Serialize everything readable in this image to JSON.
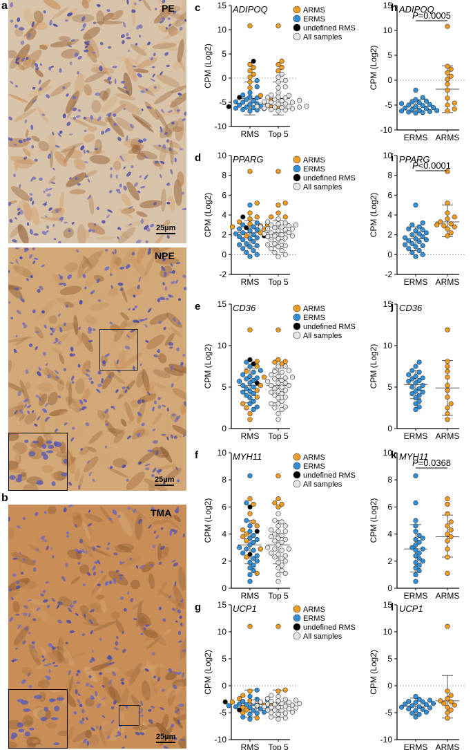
{
  "panels": {
    "a": "a",
    "b": "b",
    "c": "c",
    "d": "d",
    "e": "e",
    "f": "f",
    "g": "g",
    "h": "h",
    "i": "i",
    "j": "j",
    "k": "k",
    "l": "l"
  },
  "micrographs": [
    {
      "tag": "PE",
      "scale": "25µm",
      "tint": "#d9c3a8"
    },
    {
      "tag": "NPE",
      "scale": "25µm",
      "tint": "#d2a878"
    },
    {
      "tag": "TMA",
      "scale": "25µm",
      "tint": "#c98e58"
    }
  ],
  "colors": {
    "arms": "#f39c1e",
    "erms": "#2f8fd8",
    "undefined": "#000000",
    "all": "#e8e8e8"
  },
  "legend": [
    "ARMS",
    "ERMS",
    "undefined RMS",
    "All samples"
  ],
  "chart_data": [
    {
      "id": "c",
      "type": "scatter",
      "gene": "ADIPOQ",
      "ylabel": "CPM (Log2)",
      "ylim": [
        -10,
        15
      ],
      "yticks": [
        -10,
        -5,
        0,
        5,
        10,
        15
      ],
      "categories": [
        "RMS",
        "Top 5"
      ],
      "mean": -4.2,
      "sd_low": -7.6,
      "sd_high": -0.8,
      "arms": [
        10.8,
        2.8,
        2.2,
        1.5,
        0.8,
        0.2,
        -0.8,
        -2.0,
        -3.6,
        -4.6,
        -5.0,
        -5.8,
        -6.0
      ],
      "erms": [
        -0.5,
        -1.8,
        -3.0,
        -3.5,
        -3.9,
        -4.1,
        -4.4,
        -4.7,
        -5.0,
        -5.3,
        -5.6,
        -5.8,
        -6.0,
        -6.1,
        -6.2,
        -6.3,
        -6.5,
        -6.6,
        -6.8,
        -4.9,
        -5.4
      ],
      "und": [
        3.5,
        -4.0,
        -5.9
      ]
    },
    {
      "id": "d",
      "type": "scatter",
      "gene": "PPARG",
      "ylabel": "CPM (Log2)",
      "ylim": [
        -2,
        10
      ],
      "yticks": [
        -2,
        0,
        2,
        4,
        6,
        8,
        10
      ],
      "categories": [
        "RMS",
        "Top 5"
      ],
      "mean": 2.2,
      "sd_low": 0.8,
      "sd_high": 3.4,
      "arms": [
        8.4,
        5.2,
        4.2,
        3.8,
        3.6,
        3.3,
        3.1,
        3.0,
        2.9,
        2.8,
        2.6,
        2.2,
        1.9
      ],
      "erms": [
        5.0,
        3.2,
        3.0,
        2.8,
        2.6,
        2.4,
        2.2,
        2.1,
        2.0,
        1.8,
        1.6,
        1.5,
        1.3,
        1.1,
        1.0,
        0.8,
        0.6,
        0.4,
        0.2,
        0.0,
        -0.2,
        1.7,
        2.5,
        0.9
      ],
      "und": [
        3.8,
        1.9,
        2.7
      ]
    },
    {
      "id": "e",
      "type": "scatter",
      "gene": "CD36",
      "ylabel": "CPM (Log2)",
      "ylim": [
        0,
        15
      ],
      "yticks": [
        0,
        5,
        10,
        15
      ],
      "categories": [
        "RMS",
        "Top 5"
      ],
      "mean": 5.2,
      "sd_low": 3.1,
      "sd_high": 7.3,
      "arms": [
        11.9,
        8.1,
        7.5,
        6.9,
        6.2,
        5.2,
        4.6,
        3.8,
        3.0,
        2.5,
        1.8,
        1.1
      ],
      "erms": [
        8.0,
        7.5,
        7.0,
        6.8,
        6.5,
        6.3,
        6.0,
        5.8,
        5.5,
        5.2,
        5.0,
        4.8,
        4.5,
        4.2,
        4.0,
        3.7,
        3.3,
        3.0,
        2.6,
        2.3,
        5.7,
        4.4,
        6.1
      ],
      "und": [
        8.3,
        5.5,
        7.8
      ]
    },
    {
      "id": "f",
      "type": "scatter",
      "gene": "MYH11",
      "ylabel": "CPM (Log2)",
      "ylim": [
        0,
        10
      ],
      "yticks": [
        0,
        2,
        4,
        6,
        8,
        10
      ],
      "categories": [
        "RMS",
        "Top 5"
      ],
      "mean": 3.2,
      "sd_low": 1.8,
      "sd_high": 5.0,
      "arms": [
        6.6,
        6.2,
        5.5,
        4.9,
        4.6,
        4.3,
        4.0,
        3.8,
        3.5,
        2.9,
        2.3,
        1.1
      ],
      "erms": [
        8.3,
        6.3,
        5.0,
        4.6,
        4.2,
        3.9,
        3.6,
        3.4,
        3.2,
        3.0,
        2.8,
        2.6,
        2.4,
        2.2,
        2.0,
        1.9,
        1.7,
        1.5,
        1.3,
        1.0,
        0.5,
        2.9,
        3.7
      ],
      "und": [
        6.0,
        4.2,
        2.5
      ]
    },
    {
      "id": "g",
      "type": "scatter",
      "gene": "UCP1",
      "ylabel": "CPM (Log2)",
      "ylim": [
        -10,
        15
      ],
      "yticks": [
        -10,
        -5,
        0,
        5,
        10,
        15
      ],
      "categories": [
        "RMS",
        "Top 5"
      ],
      "mean": -3.2,
      "sd_low": -5.8,
      "sd_high": -0.8,
      "arms": [
        11.0,
        -1.0,
        -1.8,
        -2.4,
        -2.8,
        -3.0,
        -3.3,
        -3.6,
        -4.0,
        -4.5,
        -5.0,
        -6.0
      ],
      "erms": [
        -0.8,
        -2.0,
        -2.5,
        -2.9,
        -3.1,
        -3.3,
        -3.5,
        -3.7,
        -3.9,
        -4.1,
        -4.3,
        -4.6,
        -4.9,
        -5.3,
        -5.8,
        -6.2,
        -3.4,
        -2.7,
        -4.0,
        -5.1
      ],
      "und": [
        -3.0,
        -4.5,
        -3.8
      ]
    },
    {
      "id": "h",
      "type": "scatter",
      "gene": "ADIPOQ",
      "ylabel": "CPM (Log2)",
      "ylim": [
        -10,
        15
      ],
      "yticks": [
        -10,
        -5,
        0,
        5,
        10,
        15
      ],
      "categories": [
        "ERMS",
        "ARMS"
      ],
      "pvalue": "P=0.0005",
      "erms_mean": -5.2,
      "erms_sd": [
        -6.5,
        -3.9
      ],
      "arms_mean": -1.8,
      "arms_sd": [
        -6.5,
        2.9
      ],
      "erms": [
        -2.0,
        -3.5,
        -3.9,
        -4.2,
        -4.4,
        -4.7,
        -4.9,
        -5.1,
        -5.3,
        -5.5,
        -5.7,
        -5.9,
        -6.0,
        -6.1,
        -6.2,
        -6.3,
        -6.4,
        -6.5,
        -6.6,
        -5.0,
        -5.6,
        -4.5
      ],
      "arms": [
        10.8,
        2.8,
        2.2,
        1.5,
        0.8,
        0.2,
        -0.8,
        -2.0,
        -3.6,
        -4.6,
        -5.0,
        -5.8,
        -6.2
      ]
    },
    {
      "id": "i",
      "type": "scatter",
      "gene": "PPARG",
      "ylabel": "CPM (Log2)",
      "ylim": [
        -2,
        10
      ],
      "yticks": [
        -2,
        0,
        2,
        4,
        6,
        8,
        10
      ],
      "categories": [
        "ERMS",
        "ARMS"
      ],
      "pvalue": "P<0.0001",
      "erms_mean": 1.6,
      "erms_sd": [
        0.4,
        2.8
      ],
      "arms_mean": 3.3,
      "arms_sd": [
        1.8,
        5.0
      ],
      "erms": [
        5.0,
        3.2,
        3.0,
        2.8,
        2.6,
        2.4,
        2.2,
        2.1,
        2.0,
        1.8,
        1.6,
        1.5,
        1.3,
        1.1,
        1.0,
        0.8,
        0.6,
        0.4,
        0.2,
        0.0,
        -0.2,
        1.7,
        2.5,
        0.9,
        1.4
      ],
      "arms": [
        8.4,
        5.2,
        4.2,
        3.8,
        3.6,
        3.3,
        3.1,
        3.0,
        2.9,
        2.8,
        2.6,
        2.2,
        1.9
      ]
    },
    {
      "id": "j",
      "type": "scatter",
      "gene": "CD36",
      "ylabel": "CPM (Log2)",
      "ylim": [
        0,
        15
      ],
      "yticks": [
        0,
        5,
        10,
        15
      ],
      "categories": [
        "ERMS",
        "ARMS"
      ],
      "erms_mean": 5.3,
      "erms_sd": [
        3.6,
        7.0
      ],
      "arms_mean": 4.9,
      "arms_sd": [
        1.6,
        8.2
      ],
      "erms": [
        8.0,
        7.5,
        7.0,
        6.8,
        6.5,
        6.3,
        6.0,
        5.8,
        5.5,
        5.2,
        5.0,
        4.8,
        4.5,
        4.2,
        4.0,
        3.7,
        3.3,
        3.0,
        2.6,
        2.3,
        5.7,
        4.4,
        6.1
      ],
      "arms": [
        11.9,
        8.1,
        7.5,
        6.9,
        6.2,
        5.2,
        4.6,
        3.8,
        3.0,
        2.5,
        1.8,
        1.1
      ]
    },
    {
      "id": "k",
      "type": "scatter",
      "gene": "MYH11",
      "ylabel": "CPM (Log2)",
      "ylim": [
        0,
        10
      ],
      "yticks": [
        0,
        2,
        4,
        6,
        8,
        10
      ],
      "categories": [
        "ERMS",
        "ARMS"
      ],
      "pvalue": "P=0.0368",
      "erms_mean": 2.9,
      "erms_sd": [
        1.2,
        4.7
      ],
      "arms_mean": 3.8,
      "arms_sd": [
        2.3,
        5.4
      ],
      "erms": [
        8.3,
        6.3,
        5.0,
        4.6,
        4.2,
        3.9,
        3.6,
        3.4,
        3.2,
        3.0,
        2.8,
        2.6,
        2.4,
        2.2,
        2.0,
        1.9,
        1.7,
        1.5,
        1.3,
        1.0,
        0.5,
        2.9,
        3.7
      ],
      "arms": [
        6.6,
        6.2,
        5.5,
        4.9,
        4.6,
        4.3,
        4.0,
        3.8,
        3.5,
        2.9,
        2.3,
        1.1
      ]
    },
    {
      "id": "l",
      "type": "scatter",
      "gene": "UCP1",
      "ylabel": "CPM (Log2)",
      "ylim": [
        -10,
        15
      ],
      "yticks": [
        -10,
        -5,
        0,
        5,
        10,
        15
      ],
      "categories": [
        "ERMS",
        "ARMS"
      ],
      "erms_mean": -3.8,
      "erms_sd": [
        -5.3,
        -2.3
      ],
      "arms_mean": -2.8,
      "arms_sd": [
        -6.0,
        1.9
      ],
      "erms": [
        -2.0,
        -2.5,
        -2.9,
        -3.1,
        -3.3,
        -3.5,
        -3.7,
        -3.9,
        -4.1,
        -4.3,
        -4.6,
        -4.9,
        -5.3,
        -5.8,
        -3.4,
        -2.7,
        -4.0,
        -5.1,
        -3.0,
        -4.4
      ],
      "arms": [
        11.0,
        -1.0,
        -1.8,
        -2.4,
        -2.8,
        -3.0,
        -3.3,
        -3.6,
        -4.0,
        -4.5,
        -5.0,
        -6.0
      ]
    }
  ]
}
